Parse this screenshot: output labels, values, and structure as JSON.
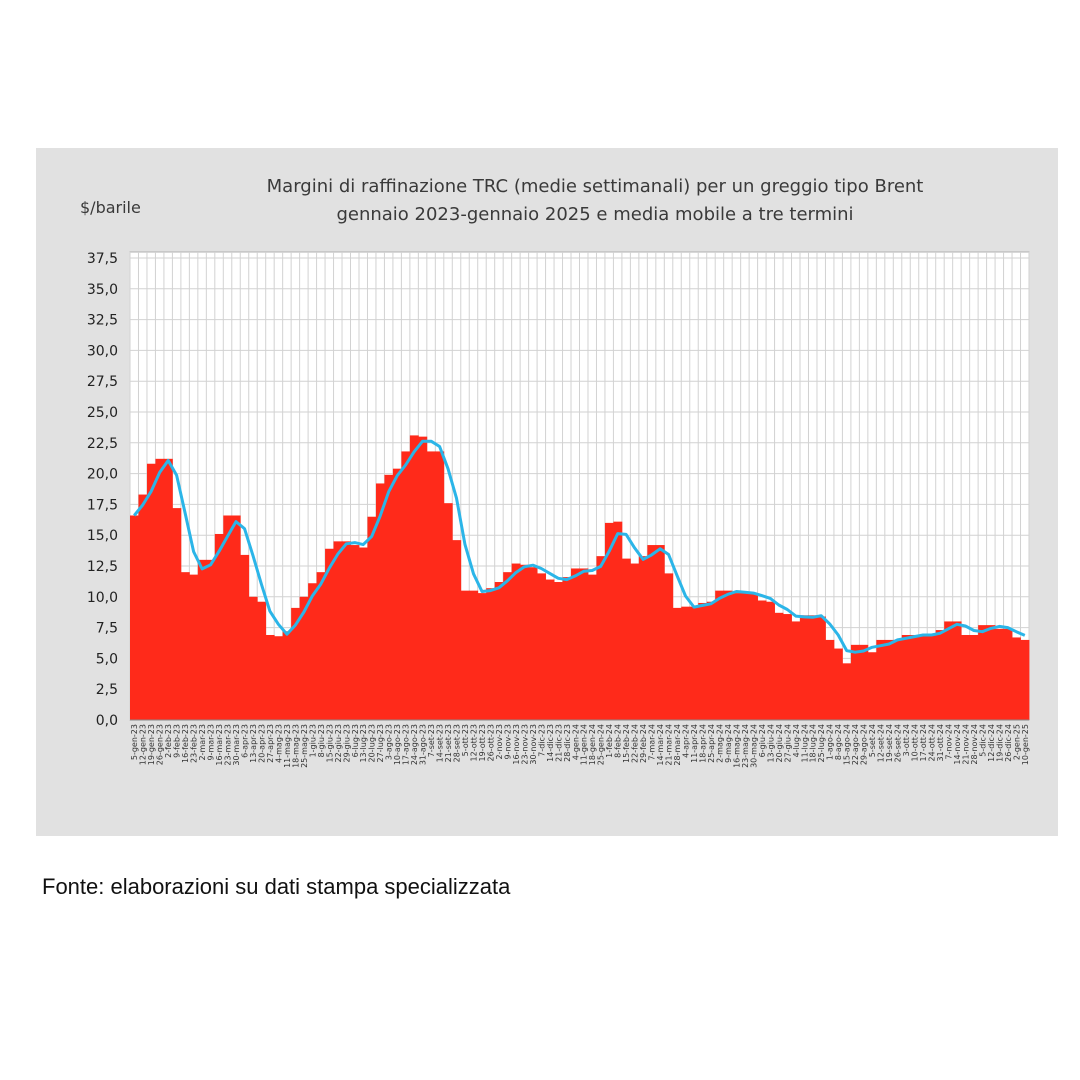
{
  "chart_data": {
    "type": "bar",
    "title": "Margini di raffinazione TRC (medie settimanali) per un greggio tipo Brent",
    "subtitle": "gennaio 2023-gennaio 2025 e media mobile a tre termini",
    "ylabel": "$/barile",
    "xlabel": "",
    "ylim": [
      0,
      37.5
    ],
    "yticks": [
      "0,0",
      "2,5",
      "5,0",
      "7,5",
      "10,0",
      "12,5",
      "15,0",
      "17,5",
      "20,0",
      "22,5",
      "25,0",
      "27,5",
      "30,0",
      "32,5",
      "35,0",
      "37,5"
    ],
    "grid": true,
    "colors": {
      "bars": "#ff2a1a",
      "moving_average": "#2bb5e8",
      "panel": "#e1e1e1",
      "grid": "#d2d2d2"
    },
    "categories": [
      "5-gen-23",
      "12-gen-23",
      "19-gen-23",
      "26-gen-23",
      "2-feb-23",
      "9-feb-23",
      "16-feb-23",
      "23-feb-23",
      "2-mar-23",
      "9-mar-23",
      "16-mar-23",
      "23-mar-23",
      "30-mar-23",
      "6-apr-23",
      "13-apr-23",
      "20-apr-23",
      "27-apr-23",
      "4-mag-23",
      "11-mag-23",
      "18-mag-23",
      "25-mag-23",
      "1-giu-23",
      "8-giu-23",
      "15-giu-23",
      "22-giu-23",
      "29-giu-23",
      "6-lug-23",
      "13-lug-23",
      "20-lug-23",
      "27-lug-23",
      "3-ago-23",
      "10-ago-23",
      "17-ago-23",
      "24-ago-23",
      "31-ago-23",
      "7-set-23",
      "14-set-23",
      "21-set-23",
      "28-set-23",
      "5-ott-23",
      "12-ott-23",
      "19-ott-23",
      "26-ott-23",
      "2-nov-23",
      "9-nov-23",
      "16-nov-23",
      "23-nov-23",
      "30-nov-23",
      "7-dic-23",
      "14-dic-23",
      "21-dic-23",
      "28-dic-23",
      "4-gen-24",
      "11-gen-24",
      "18-gen-24",
      "25-gen-24",
      "1-feb-24",
      "8-feb-24",
      "15-feb-24",
      "22-feb-24",
      "29-feb-24",
      "7-mar-24",
      "14-mar-24",
      "21-mar-24",
      "28-mar-24",
      "4-apr-24",
      "11-apr-24",
      "18-apr-24",
      "25-apr-24",
      "2-mag-24",
      "9-mag-24",
      "16-mag-24",
      "23-mag-24",
      "30-mag-24",
      "6-giu-24",
      "13-giu-24",
      "20-giu-24",
      "27-giu-24",
      "4-lug-24",
      "11-lug-24",
      "18-lug-24",
      "25-lug-24",
      "1-ago-24",
      "8-ago-24",
      "15-ago-24",
      "22-ago-24",
      "29-ago-24",
      "5-set-24",
      "12-set-24",
      "19-set-24",
      "26-set-24",
      "3-ott-24",
      "10-ott-24",
      "17-ott-24",
      "24-ott-24",
      "31-ott-24",
      "7-nov-24",
      "14-nov-24",
      "21-nov-24",
      "28-nov-24",
      "5-dic-24",
      "12-dic-24",
      "19-dic-24",
      "26-dic-24",
      "2-gen-25",
      "10-gen-25"
    ],
    "series": [
      {
        "type": "bar",
        "values": [
          16.6,
          18.3,
          20.8,
          21.2,
          21.2,
          17.2,
          12.0,
          11.8,
          13.0,
          13.0,
          15.1,
          16.6,
          16.6,
          13.4,
          10.0,
          9.6,
          6.9,
          6.8,
          7.2,
          9.1,
          10.0,
          11.1,
          12.0,
          13.9,
          14.5,
          14.5,
          14.2,
          14.0,
          16.5,
          19.2,
          19.9,
          20.4,
          21.8,
          23.1,
          23.0,
          21.8,
          21.8,
          17.6,
          14.6,
          10.5,
          10.5,
          10.3,
          10.7,
          11.2,
          12.0,
          12.7,
          12.6,
          12.4,
          11.9,
          11.4,
          11.2,
          11.6,
          12.3,
          12.3,
          11.8,
          13.3,
          16.0,
          16.1,
          13.1,
          12.7,
          13.3,
          14.2,
          14.2,
          11.9,
          9.1,
          9.2,
          9.2,
          9.5,
          9.6,
          10.5,
          10.5,
          10.3,
          10.3,
          10.3,
          9.7,
          9.6,
          8.7,
          8.6,
          8.0,
          8.5,
          8.5,
          8.4,
          6.5,
          5.8,
          4.6,
          6.1,
          6.1,
          5.5,
          6.5,
          6.5,
          6.5,
          6.9,
          6.9,
          6.9,
          6.9,
          7.3,
          8.0,
          8.0,
          6.9,
          6.9,
          7.7,
          7.7,
          7.4,
          7.4,
          6.7,
          6.5
        ]
      },
      {
        "type": "line",
        "derived": "media mobile a tre termini"
      }
    ]
  },
  "source": "Fonte: elaborazioni su dati stampa specializzata"
}
